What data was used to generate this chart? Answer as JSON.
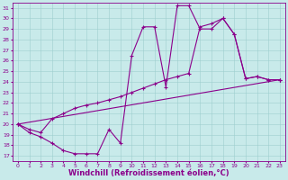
{
  "background_color": "#c8eaea",
  "line_color": "#8b008b",
  "marker": "+",
  "markersize": 3,
  "linewidth": 0.8,
  "xlabel": "Windchill (Refroidissement éolien,°C)",
  "xlabel_fontsize": 6.0,
  "ylabel_ticks": [
    17,
    18,
    19,
    20,
    21,
    22,
    23,
    24,
    25,
    26,
    27,
    28,
    29,
    30,
    31
  ],
  "xlabel_ticks": [
    0,
    1,
    2,
    3,
    4,
    5,
    6,
    7,
    8,
    9,
    10,
    11,
    12,
    13,
    14,
    15,
    16,
    17,
    18,
    19,
    20,
    21,
    22,
    23
  ],
  "xlim": [
    -0.5,
    23.5
  ],
  "ylim": [
    16.5,
    31.5
  ],
  "series": [
    {
      "x": [
        0,
        1,
        2,
        3,
        4,
        5,
        6,
        7,
        8,
        9,
        10,
        11,
        12,
        13,
        14,
        15,
        16,
        17,
        18,
        19,
        20,
        21,
        22,
        23
      ],
      "y": [
        20,
        19.2,
        18.8,
        18.2,
        17.5,
        17.2,
        17.2,
        17.2,
        19.5,
        18.2,
        26.5,
        29.2,
        29.2,
        23.5,
        31.2,
        31.2,
        29.0,
        29.0,
        30.0,
        28.5,
        24.3,
        24.5,
        24.2,
        24.2
      ]
    },
    {
      "x": [
        0,
        1,
        2,
        3,
        4,
        5,
        6,
        7,
        8,
        9,
        10,
        11,
        12,
        13,
        14,
        15,
        16,
        17,
        18,
        19,
        20,
        21,
        22,
        23
      ],
      "y": [
        20,
        19.5,
        19.2,
        20.5,
        21.0,
        21.5,
        21.8,
        22.0,
        22.3,
        22.6,
        23.0,
        23.4,
        23.8,
        24.2,
        24.5,
        24.8,
        29.2,
        29.5,
        30.0,
        28.5,
        24.3,
        24.5,
        24.2,
        24.2
      ]
    },
    {
      "x": [
        0,
        23
      ],
      "y": [
        20,
        24.2
      ]
    }
  ]
}
